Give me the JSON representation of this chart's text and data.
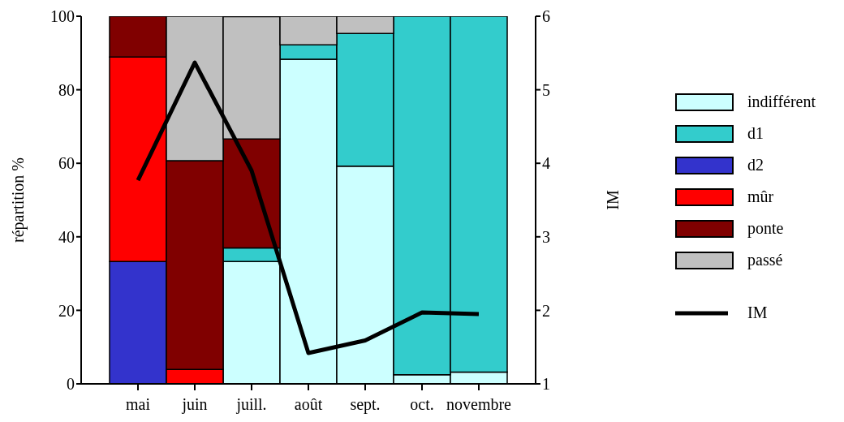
{
  "chart_data": {
    "type": "bar",
    "stacked": true,
    "categories": [
      "mai",
      "juin",
      "juill.",
      "août",
      "sept.",
      "oct.",
      "novembre"
    ],
    "ylabel": "répartition %",
    "y2label": "IM",
    "ylim": [
      0,
      100
    ],
    "yticks": [
      0,
      20,
      40,
      60,
      80,
      100
    ],
    "y2lim": [
      1,
      6
    ],
    "y2ticks": [
      1,
      2,
      3,
      4,
      5,
      6
    ],
    "legend": "right",
    "series": [
      {
        "name": "indifférent",
        "color": "#ccffff",
        "values": [
          0,
          0,
          33.3,
          88.3,
          59.2,
          2.5,
          3.2
        ]
      },
      {
        "name": "d1",
        "color": "#33cccc",
        "values": [
          0,
          0,
          3.7,
          3.9,
          36.1,
          97.5,
          96.8
        ]
      },
      {
        "name": "d2",
        "color": "#3333cc",
        "values": [
          33.3,
          0,
          0,
          0,
          0,
          0,
          0
        ]
      },
      {
        "name": "mûr",
        "color": "#ff0000",
        "values": [
          55.6,
          3.9,
          0,
          0,
          0,
          0,
          0
        ]
      },
      {
        "name": "ponte",
        "color": "#800000",
        "values": [
          11.1,
          56.8,
          29.6,
          0,
          0,
          0,
          0
        ]
      },
      {
        "name": "passé",
        "color": "#c0c0c0",
        "values": [
          0,
          39.3,
          33.3,
          7.8,
          4.7,
          0,
          0
        ]
      },
      {
        "name": "IM",
        "type": "line",
        "axis": "y2",
        "color": "#000000",
        "values": [
          3.77,
          5.37,
          3.9,
          1.42,
          1.59,
          1.97,
          1.95
        ]
      }
    ]
  }
}
